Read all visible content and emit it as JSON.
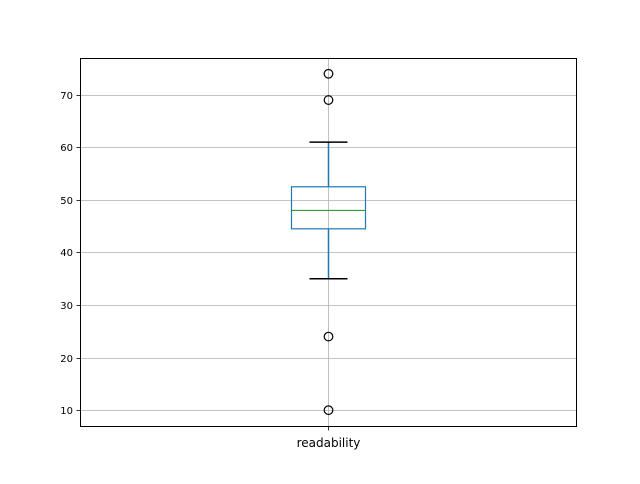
{
  "chart_data": {
    "type": "boxplot",
    "categories": [
      "readability"
    ],
    "boxes": [
      {
        "name": "readability",
        "whisker_low": 35,
        "q1": 44.5,
        "median": 48,
        "q3": 52.5,
        "whisker_high": 61,
        "outliers": [
          74,
          69,
          24,
          10
        ]
      }
    ],
    "ylim": [
      6.8,
      77.0
    ],
    "yticks": [
      10,
      20,
      30,
      40,
      50,
      60,
      70
    ],
    "grid": true,
    "colors": {
      "box": "#1f77b4",
      "median": "#2ca02c",
      "caps": "#000000",
      "grid": "#b0b0b0",
      "outlier": "#000000"
    }
  }
}
